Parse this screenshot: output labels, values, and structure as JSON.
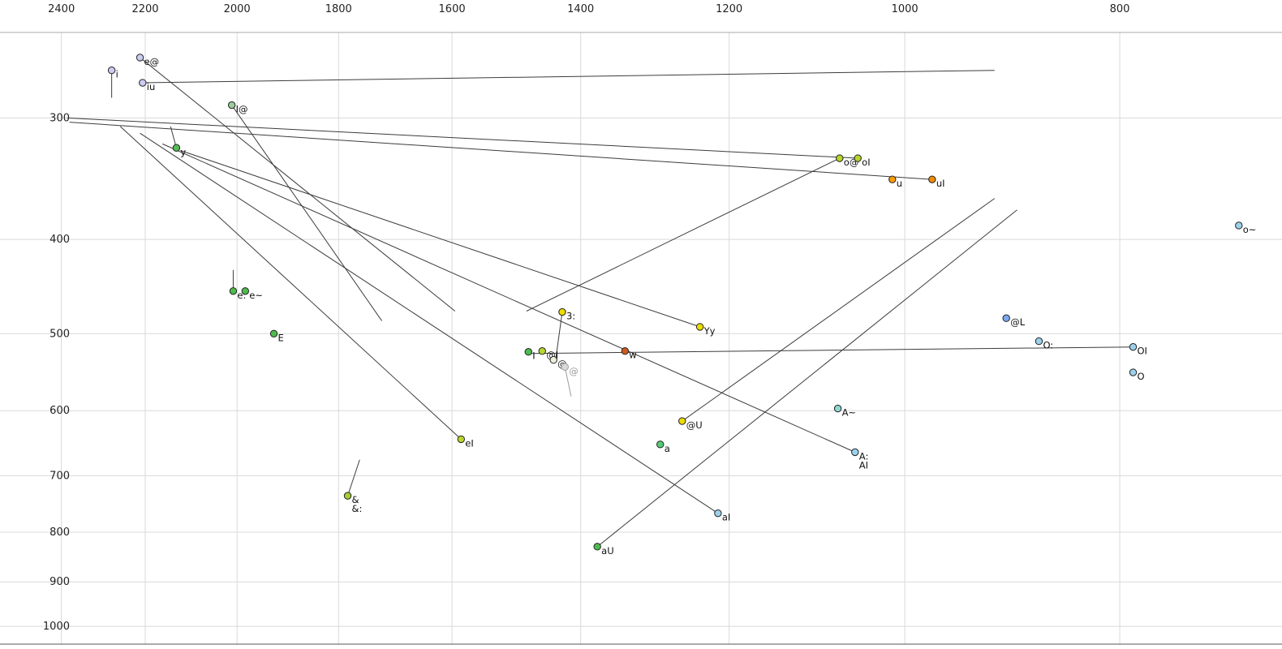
{
  "chart_data": {
    "type": "scatter",
    "title": "",
    "xlabel": "",
    "ylabel": "",
    "x_axis": {
      "scale": "log",
      "reversed": true,
      "position": "top",
      "range": [
        2558,
        676
      ],
      "ticks": [
        2400,
        2200,
        2000,
        1800,
        1600,
        1400,
        1200,
        1000,
        800
      ]
    },
    "y_axis": {
      "scale": "log",
      "reversed": true,
      "position": "left",
      "range": [
        245,
        1043
      ],
      "ticks": [
        300,
        400,
        500,
        600,
        700,
        800,
        900,
        1000
      ]
    },
    "grid": true,
    "colors": {
      "grid": "#d9d9d9",
      "axis_border": "#aaaaaa",
      "bottom_border": "#555555",
      "trajectory": "#3c3c3c",
      "label": "#111111",
      "muted_label": "#9a9a9a",
      "tick_label": "#222222"
    },
    "points": [
      {
        "id": "e@",
        "labels": [
          "e@"
        ],
        "f2": 2212,
        "f1": 260,
        "color": "#ccccf2"
      },
      {
        "id": "i",
        "labels": [
          "i"
        ],
        "f2": 2278,
        "f1": 268,
        "color": "#ccccf2",
        "tail": {
          "f2": 2278,
          "f1": 286
        }
      },
      {
        "id": "iu",
        "labels": [
          "iu"
        ],
        "f2": 2206,
        "f1": 276,
        "color": "#ccccf2"
      },
      {
        "id": "I@",
        "labels": [
          "I@"
        ],
        "f2": 2011,
        "f1": 291,
        "color": "#99cc99"
      },
      {
        "id": "y",
        "labels": [
          "y"
        ],
        "f2": 2130,
        "f1": 322,
        "color": "#55bb55",
        "tail": {
          "f2": 2143,
          "f1": 306
        }
      },
      {
        "id": "o@",
        "labels": [
          "o@"
        ],
        "f2": 1070,
        "f1": 330,
        "color": "#b5d62a"
      },
      {
        "id": "oI",
        "labels": [
          "oI"
        ],
        "f2": 1050,
        "f1": 330,
        "color": "#b5d62a"
      },
      {
        "id": "u",
        "labels": [
          "u"
        ],
        "f2": 1013,
        "f1": 347,
        "color": "#ff9c00"
      },
      {
        "id": "uI",
        "labels": [
          "uI"
        ],
        "f2": 972,
        "f1": 347,
        "color": "#f08a00"
      },
      {
        "id": "o~",
        "labels": [
          "o~"
        ],
        "f2": 707,
        "f1": 387,
        "color": "#9cd1ec"
      },
      {
        "id": "e:",
        "labels": [
          "e:"
        ],
        "f2": 2008,
        "f1": 452,
        "color": "#4dbb4d",
        "tail": {
          "f2": 2008,
          "f1": 430
        }
      },
      {
        "id": "e~",
        "labels": [
          "e~"
        ],
        "f2": 1983,
        "f1": 452,
        "color": "#4dbb4d"
      },
      {
        "id": "E",
        "labels": [
          "E"
        ],
        "f2": 1925,
        "f1": 500,
        "color": "#4dbb4d"
      },
      {
        "id": "3:",
        "labels": [
          "3:"
        ],
        "f2": 1427,
        "f1": 475,
        "color": "#ecdc00",
        "tail": {
          "f2": 1437,
          "f1": 533
        }
      },
      {
        "id": "Yy",
        "labels": [
          "Yy"
        ],
        "f2": 1237,
        "f1": 492,
        "color": "#ecdc00"
      },
      {
        "id": "I",
        "labels": [
          "I"
        ],
        "f2": 1478,
        "f1": 522,
        "color": "#4dbb4d"
      },
      {
        "id": "@I",
        "labels": [
          "@I"
        ],
        "f2": 1457,
        "f1": 521,
        "color": "#b5d62a"
      },
      {
        "id": "@",
        "labels": [
          "@"
        ],
        "f2": 1440,
        "f1": 532,
        "color": "#eeeedd"
      },
      {
        "id": "@-2",
        "labels": [
          "@"
        ],
        "f2": 1423,
        "f1": 541,
        "color": "#d9d9d9",
        "muted": true,
        "tail": {
          "f2": 1414,
          "f1": 580
        }
      },
      {
        "id": "w",
        "labels": [
          "w"
        ],
        "f2": 1337,
        "f1": 521,
        "color": "#cc5a1e"
      },
      {
        "id": "@L",
        "labels": [
          "@L"
        ],
        "f2": 900,
        "f1": 482,
        "color": "#7aa8f0"
      },
      {
        "id": "O:",
        "labels": [
          "O:"
        ],
        "f2": 870,
        "f1": 509,
        "color": "#9cd1ec"
      },
      {
        "id": "OI",
        "labels": [
          "OI"
        ],
        "f2": 789,
        "f1": 516,
        "color": "#9cd1ec"
      },
      {
        "id": "O",
        "labels": [
          "O"
        ],
        "f2": 789,
        "f1": 548,
        "color": "#9cd1ec"
      },
      {
        "id": "A~",
        "labels": [
          "A~"
        ],
        "f2": 1072,
        "f1": 597,
        "color": "#8fd8d2"
      },
      {
        "id": "@U",
        "labels": [
          "@U"
        ],
        "f2": 1260,
        "f1": 615,
        "color": "#ecdc00"
      },
      {
        "id": "a",
        "labels": [
          "a"
        ],
        "f2": 1289,
        "f1": 650,
        "color": "#55cc77"
      },
      {
        "id": "A:",
        "labels": [
          "A:",
          "AI"
        ],
        "f2": 1053,
        "f1": 662,
        "color": "#9cd1ec"
      },
      {
        "id": "eI",
        "labels": [
          "eI"
        ],
        "f2": 1585,
        "f1": 642,
        "color": "#b5d62a"
      },
      {
        "id": "&:",
        "labels": [
          "&",
          "&:"
        ],
        "f2": 1783,
        "f1": 734,
        "color": "#a8cc33",
        "tail": {
          "f2": 1761,
          "f1": 674
        }
      },
      {
        "id": "aI",
        "labels": [
          "aI"
        ],
        "f2": 1214,
        "f1": 765,
        "color": "#9cd1ec"
      },
      {
        "id": "aU",
        "labels": [
          "aU"
        ],
        "f2": 1376,
        "f1": 828,
        "color": "#4dbb4d"
      }
    ],
    "trajectories": [
      {
        "from": "iu",
        "to_f2": 911,
        "to_f1": 268
      },
      {
        "from": "oI",
        "to_f2": 2386,
        "to_f1": 300
      },
      {
        "from": "uI",
        "to_f2": 2380,
        "to_f1": 303
      },
      {
        "from": "e@",
        "to_f2": 1595,
        "to_f1": 474
      },
      {
        "from": "I@",
        "to_f2": 1721,
        "to_f1": 485
      },
      {
        "from": "o@",
        "to_f2": 1481,
        "to_f1": 474
      },
      {
        "from": "eI",
        "to_f2": 2258,
        "to_f1": 306
      },
      {
        "from": "aI",
        "to_f2": 2212,
        "to_f1": 311
      },
      {
        "from": "A:",
        "to_f2": 2161,
        "to_f1": 319
      },
      {
        "from": "aU",
        "to_f2": 890,
        "to_f1": 373
      },
      {
        "from": "@U",
        "to_f2": 911,
        "to_f1": 363
      },
      {
        "from": "OI",
        "to_f2": 1473,
        "to_f1": 524
      },
      {
        "from": "Yy",
        "to_f2": 2121,
        "to_f1": 324
      }
    ]
  }
}
